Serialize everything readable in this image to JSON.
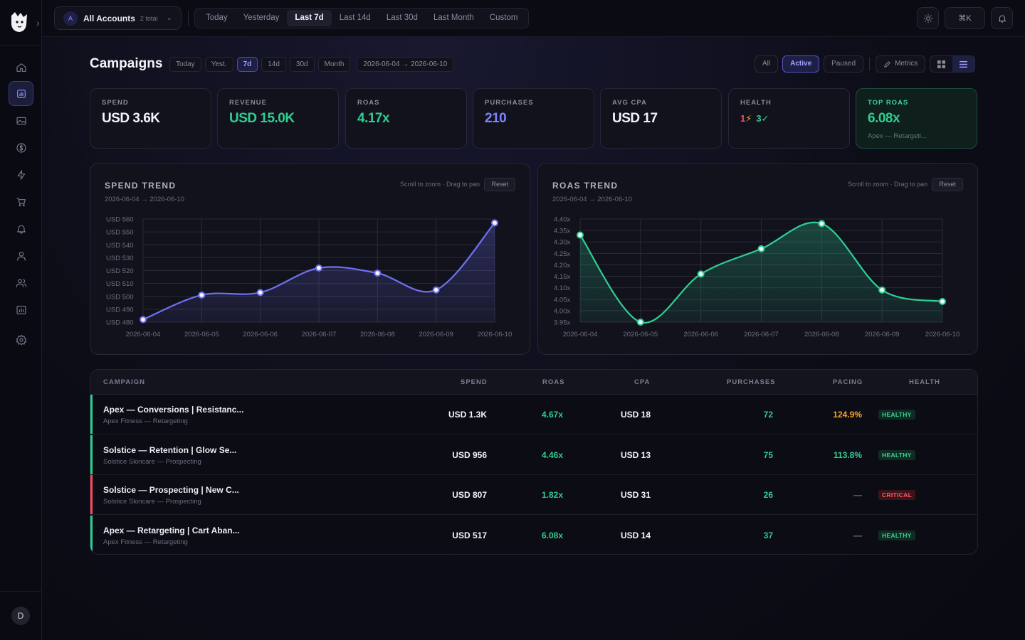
{
  "topbar": {
    "account_initial": "A",
    "account_name": "All Accounts",
    "account_count": "2 total",
    "ranges": [
      "Today",
      "Yesterday",
      "Last 7d",
      "Last 14d",
      "Last 30d",
      "Last Month",
      "Custom"
    ],
    "active_range": "Last 7d",
    "shortcut": "⌘K"
  },
  "sidebar": {
    "items": [
      "home-icon",
      "bar-chart-icon",
      "image-icon",
      "dollar-icon",
      "bolt-icon",
      "cart-icon",
      "bell-icon",
      "user-icon",
      "users-icon",
      "report-icon",
      "gear-icon"
    ],
    "active": "bar-chart-icon",
    "avatar_initial": "D"
  },
  "page": {
    "title": "Campaigns",
    "chips": [
      "Today",
      "Yest.",
      "7d",
      "14d",
      "30d",
      "Month"
    ],
    "active_chip": "7d",
    "date_range": "2026-06-04 → 2026-06-10",
    "status_filters": [
      "All",
      "Active",
      "Paused"
    ],
    "active_filter": "Active",
    "metrics_label": "Metrics"
  },
  "kpis": {
    "spend": {
      "label": "SPEND",
      "value": "USD 3.6K"
    },
    "revenue": {
      "label": "REVENUE",
      "value": "USD 15.0K"
    },
    "roas": {
      "label": "ROAS",
      "value": "4.17x"
    },
    "purchases": {
      "label": "PURCHASES",
      "value": "210"
    },
    "avg_cpa": {
      "label": "AVG CPA",
      "value": "USD 17"
    },
    "health": {
      "label": "HEALTH",
      "critical_count": "1",
      "healthy_count": "3"
    },
    "top_roas": {
      "label": "TOP ROAS",
      "value": "6.08x",
      "sub": "Apex — Retargeti..."
    }
  },
  "colors": {
    "accent": "#6d71f2",
    "green": "#2ecf91",
    "red": "#ff4a59",
    "orange": "#f5a524"
  },
  "charts": {
    "hint": "Scroll to zoom · Drag to pan",
    "reset_label": "Reset"
  },
  "chart_data": [
    {
      "type": "area",
      "title": "SPEND TREND",
      "subtitle": "2026-06-04 → 2026-06-10",
      "x": [
        "2026-06-04",
        "2026-06-05",
        "2026-06-06",
        "2026-06-07",
        "2026-06-08",
        "2026-06-09",
        "2026-06-10"
      ],
      "values": [
        482,
        501,
        503,
        522,
        518,
        505,
        557
      ],
      "yticks": [
        "USD 480",
        "USD 490",
        "USD 500",
        "USD 510",
        "USD 520",
        "USD 530",
        "USD 540",
        "USD 550",
        "USD 560"
      ],
      "ylim": [
        480,
        560
      ],
      "grid": true,
      "color": "#6d71f2"
    },
    {
      "type": "area",
      "title": "ROAS TREND",
      "subtitle": "2026-06-04 → 2026-06-10",
      "x": [
        "2026-06-04",
        "2026-06-05",
        "2026-06-06",
        "2026-06-07",
        "2026-06-08",
        "2026-06-09",
        "2026-06-10"
      ],
      "values": [
        4.33,
        3.95,
        4.16,
        4.27,
        4.38,
        4.09,
        4.04
      ],
      "yticks": [
        "3.95x",
        "4.00x",
        "4.05x",
        "4.10x",
        "4.15x",
        "4.20x",
        "4.25x",
        "4.30x",
        "4.35x",
        "4.40x"
      ],
      "ylim": [
        3.95,
        4.4
      ],
      "grid": true,
      "color": "#2ecf91"
    }
  ],
  "table": {
    "headers": [
      "CAMPAIGN",
      "SPEND",
      "ROAS",
      "CPA",
      "PURCHASES",
      "PACING",
      "HEALTH"
    ],
    "rows": [
      {
        "name": "Apex — Conversions | Resistanc...",
        "sub": "Apex Fitness — Retargeting",
        "spend": "USD 1.3K",
        "roas": "4.67x",
        "cpa": "USD 18",
        "purchases": "72",
        "pacing": "124.9%",
        "pacing_color": "#f5a524",
        "health": "HEALTHY",
        "status": "ok"
      },
      {
        "name": "Solstice — Retention | Glow Se...",
        "sub": "Solstice Skincare — Prospecting",
        "spend": "USD 956",
        "roas": "4.46x",
        "cpa": "USD 13",
        "purchases": "75",
        "pacing": "113.8%",
        "pacing_color": "#2ecf91",
        "health": "HEALTHY",
        "status": "ok"
      },
      {
        "name": "Solstice — Prospecting | New C...",
        "sub": "Solstice Skincare — Prospecting",
        "spend": "USD 807",
        "roas": "1.82x",
        "cpa": "USD 31",
        "purchases": "26",
        "pacing": "—",
        "pacing_color": "#6c6c80",
        "health": "CRITICAL",
        "status": "bad"
      },
      {
        "name": "Apex — Retargeting | Cart Aban...",
        "sub": "Apex Fitness — Retargeting",
        "spend": "USD 517",
        "roas": "6.08x",
        "cpa": "USD 14",
        "purchases": "37",
        "pacing": "—",
        "pacing_color": "#6c6c80",
        "health": "HEALTHY",
        "status": "ok"
      }
    ]
  }
}
